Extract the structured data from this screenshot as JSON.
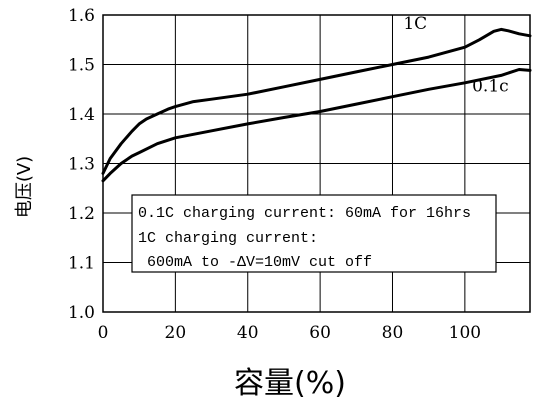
{
  "chart_data": {
    "type": "line",
    "title": "",
    "xlabel": "容量(%)",
    "ylabel": "电压(V)",
    "xlim": [
      0,
      118
    ],
    "ylim": [
      1.0,
      1.6
    ],
    "xticks": [
      0,
      20,
      40,
      60,
      80,
      100
    ],
    "xtick_labels": [
      "0",
      "20",
      "40",
      "60",
      "80",
      "100"
    ],
    "yticks": [
      1.0,
      1.1,
      1.2,
      1.3,
      1.4,
      1.5,
      1.6
    ],
    "ytick_labels": [
      "1.0",
      "1.1",
      "1.2",
      "1.3",
      "1.4",
      "1.5",
      "1.6"
    ],
    "grid": true,
    "series": [
      {
        "name": "1C",
        "x": [
          0,
          2,
          5,
          8,
          10,
          12,
          15,
          18,
          20,
          25,
          30,
          40,
          50,
          60,
          70,
          80,
          90,
          100,
          104,
          108,
          110,
          112,
          115,
          118
        ],
        "y": [
          1.28,
          1.31,
          1.34,
          1.365,
          1.38,
          1.39,
          1.4,
          1.41,
          1.415,
          1.425,
          1.43,
          1.44,
          1.455,
          1.47,
          1.485,
          1.5,
          1.515,
          1.535,
          1.55,
          1.567,
          1.571,
          1.568,
          1.562,
          1.558
        ]
      },
      {
        "name": "0.1c",
        "x": [
          0,
          2,
          5,
          8,
          10,
          15,
          20,
          30,
          40,
          50,
          60,
          70,
          80,
          90,
          100,
          110,
          115,
          118
        ],
        "y": [
          1.265,
          1.28,
          1.3,
          1.315,
          1.322,
          1.34,
          1.352,
          1.366,
          1.38,
          1.393,
          1.405,
          1.42,
          1.435,
          1.45,
          1.463,
          1.478,
          1.49,
          1.488
        ]
      }
    ],
    "annotations": {
      "line1": "0.1C charging current: 60mA for 16hrs",
      "line2": "1C charging current:",
      "line3": " 600mA to -ΔV=10mV cut off"
    }
  }
}
